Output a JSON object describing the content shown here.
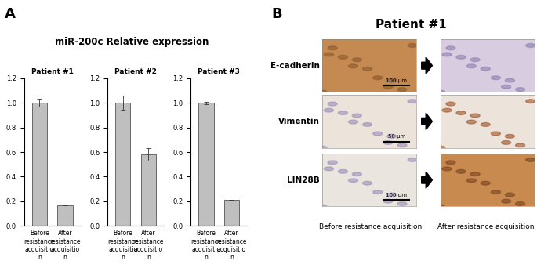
{
  "panel_labels": [
    "A",
    "B"
  ],
  "figure_title": "miR-200c Relative expression",
  "chart_data": [
    {
      "type": "bar",
      "title": "Patient #1",
      "categories": [
        "Before resistance acquisition",
        "After resistance acquisition"
      ],
      "values": [
        1.0,
        0.17
      ],
      "error": [
        0.03,
        0.005
      ],
      "color": "#bfbfbf",
      "ylim": [
        0,
        1.2
      ],
      "yticks": [
        {
          "value": 0,
          "label": "0.0"
        },
        {
          "value": 0.2,
          "label": "0.2"
        },
        {
          "value": 0.4,
          "label": "0.4"
        },
        {
          "value": 0.6,
          "label": "0.6"
        },
        {
          "value": 0.8,
          "label": "0.8"
        },
        {
          "value": 1.0,
          "label": "1.0"
        },
        {
          "value": 1.2,
          "label": "1.2"
        }
      ]
    },
    {
      "type": "bar",
      "title": "Patient #2",
      "categories": [
        "Before resistance acquisition",
        "After resistance acquisition"
      ],
      "values": [
        1.0,
        0.58
      ],
      "error": [
        0.055,
        0.05
      ],
      "color": "#bfbfbf",
      "ylim": [
        0,
        1.2
      ],
      "yticks": [
        {
          "value": 0,
          "label": "0.0"
        },
        {
          "value": 0.2,
          "label": "0.2"
        },
        {
          "value": 0.4,
          "label": "0.4"
        },
        {
          "value": 0.6,
          "label": "0.6"
        },
        {
          "value": 0.8,
          "label": "0.8"
        },
        {
          "value": 1.0,
          "label": "1.0"
        },
        {
          "value": 1.2,
          "label": "1.2"
        }
      ]
    },
    {
      "type": "bar",
      "title": "Patient #3",
      "categories": [
        "Before resistance acquisition",
        "After resistance acquisition"
      ],
      "values": [
        1.0,
        0.21
      ],
      "error": [
        0.01,
        0.005
      ],
      "color": "#bfbfbf",
      "ylim": [
        0,
        1.2
      ],
      "yticks": [
        {
          "value": 0,
          "label": "0.0"
        },
        {
          "value": 0.2,
          "label": "0.2"
        },
        {
          "value": 0.4,
          "label": "0.4"
        },
        {
          "value": 0.6,
          "label": "0.6"
        },
        {
          "value": 0.8,
          "label": "0.8"
        },
        {
          "value": 1.0,
          "label": "1.0"
        },
        {
          "value": 1.2,
          "label": "1.2"
        }
      ]
    }
  ],
  "micrographs": {
    "title": "Patient #1",
    "columns": [
      "Before resistance acquisition",
      "After resistance acquisition"
    ],
    "rows": [
      {
        "name": "E-cadherin",
        "scale_bar": "100 µm"
      },
      {
        "name": "Vimentin",
        "scale_bar": "50 µm"
      },
      {
        "name": "LIN28B",
        "scale_bar": "100 µm"
      }
    ]
  }
}
